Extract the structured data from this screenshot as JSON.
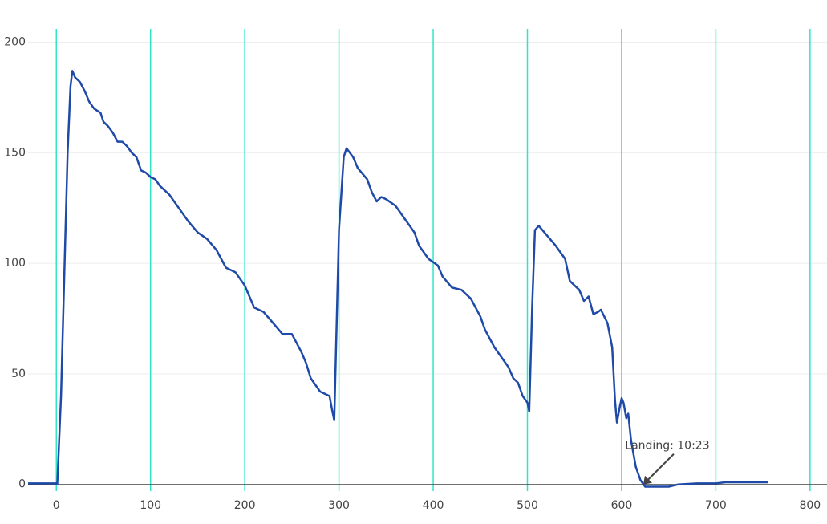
{
  "chart_data": {
    "type": "line",
    "x": [
      -30,
      -10,
      0,
      1,
      5,
      12,
      15,
      17,
      20,
      25,
      30,
      35,
      40,
      47,
      50,
      55,
      60,
      65,
      70,
      75,
      80,
      85,
      90,
      95,
      100,
      105,
      110,
      120,
      130,
      140,
      150,
      160,
      170,
      180,
      190,
      200,
      210,
      220,
      230,
      240,
      250,
      260,
      265,
      270,
      280,
      290,
      293,
      295,
      300,
      305,
      308,
      315,
      320,
      330,
      335,
      340,
      345,
      350,
      360,
      370,
      380,
      385,
      395,
      405,
      410,
      420,
      430,
      440,
      450,
      455,
      465,
      475,
      480,
      485,
      490,
      495,
      500,
      502,
      505,
      508,
      512,
      520,
      530,
      540,
      545,
      555,
      560,
      565,
      570,
      575,
      578,
      585,
      590,
      593,
      595,
      598,
      600,
      602,
      605,
      607,
      610,
      615,
      620,
      625,
      640,
      650,
      660,
      680,
      700,
      710,
      730,
      750,
      755
    ],
    "values": [
      0.5,
      0.5,
      0.5,
      0,
      40,
      150,
      180,
      187,
      184,
      182,
      178,
      173,
      170,
      168,
      164,
      162,
      159,
      155,
      155,
      153,
      150,
      148,
      142,
      141,
      139,
      138,
      135,
      131,
      125,
      119,
      114,
      111,
      106,
      98,
      96,
      90,
      80,
      78,
      73,
      68,
      68,
      60,
      55,
      48,
      42,
      40,
      33,
      29,
      115,
      148,
      152,
      148,
      143,
      138,
      132,
      128,
      130,
      129,
      126,
      120,
      114,
      108,
      102,
      99,
      94,
      89,
      88,
      84,
      76,
      70,
      62,
      56,
      53,
      48,
      46,
      40,
      37,
      33,
      80,
      115,
      117,
      113,
      108,
      102,
      92,
      88,
      83,
      85,
      77,
      78,
      79,
      73,
      62,
      38,
      28,
      35,
      39,
      37,
      30,
      32,
      20,
      8,
      2,
      -1,
      -1,
      -1,
      0,
      0.5,
      0.5,
      1,
      1,
      1,
      1
    ],
    "color": "#1f4aa8",
    "xlim": [
      -30,
      818
    ],
    "ylim": [
      -3,
      206
    ],
    "xticks": [
      0,
      100,
      200,
      300,
      400,
      500,
      600,
      700,
      800
    ],
    "yticks": [
      0,
      50,
      100,
      150,
      200
    ],
    "grid": true,
    "xgrid_color": "#2ee6c6",
    "ygrid_color": "#eeeeee",
    "annotation": {
      "text": "Landing: 10:23",
      "x": 623,
      "y": 0
    }
  }
}
